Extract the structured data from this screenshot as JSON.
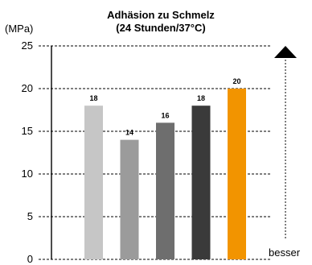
{
  "chart_data": {
    "type": "bar",
    "title": "Adhäsion zu Schmelz",
    "subtitle": "(24 Stunden/37°C)",
    "ylabel": "(MPa)",
    "xlabel": "",
    "ylim": [
      0,
      25
    ],
    "yticks": [
      0,
      5,
      10,
      15,
      20,
      25
    ],
    "ytick_labels": [
      "0",
      "5",
      "10",
      "15",
      "20",
      "25"
    ],
    "grid": true,
    "values": [
      18,
      14,
      16,
      18,
      20
    ],
    "data_labels": [
      "18",
      "14",
      "16",
      "18",
      "20"
    ],
    "colors": [
      "#c6c6c6",
      "#9b9b9b",
      "#6e6e6e",
      "#3a3a3a",
      "#f29400"
    ],
    "direction_label": "besser"
  }
}
